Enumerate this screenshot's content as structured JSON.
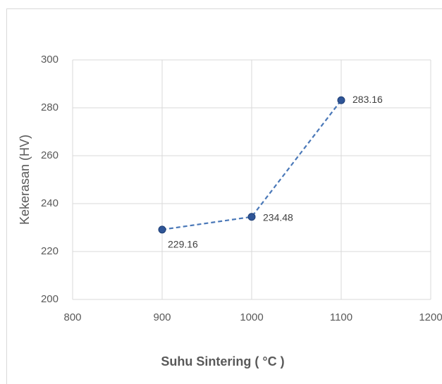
{
  "chart_data": {
    "type": "line",
    "x_label": "Suhu Sintering ( °C )",
    "y_label": "Kekerasan (HV)",
    "series": [
      {
        "x": [
          900,
          1000,
          1100
        ],
        "values": [
          229.16,
          234.48,
          283.16
        ],
        "color": "#2f5597"
      }
    ],
    "xlim": [
      800,
      1200
    ],
    "xticks": [
      800,
      900,
      1000,
      1100,
      1200
    ],
    "ylim": [
      200,
      300
    ],
    "yticks": [
      200,
      220,
      240,
      260,
      280,
      300
    ],
    "grid": true,
    "line_style": "dashed"
  }
}
